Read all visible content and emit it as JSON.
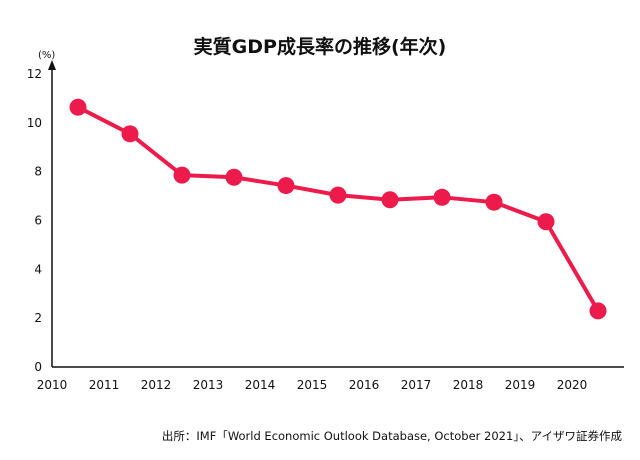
{
  "chart_data": {
    "type": "line",
    "title": "実質GDP成長率の推移(年次)",
    "y_unit": "(%)",
    "x_ticks": [
      "2010",
      "2011",
      "2012",
      "2013",
      "2014",
      "2015",
      "2016",
      "2017",
      "2018",
      "2019",
      "2020"
    ],
    "y_ticks": [
      "0",
      "2",
      "4",
      "6",
      "8",
      "10",
      "12"
    ],
    "xlim": [
      2010,
      2021
    ],
    "ylim": [
      0,
      12
    ],
    "x": [
      2010.5,
      2011.5,
      2012.5,
      2013.5,
      2014.5,
      2015.5,
      2016.5,
      2017.5,
      2018.5,
      2019.5,
      2020.5
    ],
    "series": [
      {
        "values": [
          10.64,
          9.55,
          7.86,
          7.77,
          7.43,
          7.04,
          6.85,
          6.95,
          6.75,
          5.95,
          2.3
        ]
      }
    ],
    "grid": false,
    "legend": "none",
    "colors": {
      "line": "#ec1b4b",
      "marker": "#ec1b4b",
      "axis": "#111111"
    }
  },
  "source_note": "出所：IMF「World Economic Outlook Database, October 2021」、アイザワ証券作成"
}
